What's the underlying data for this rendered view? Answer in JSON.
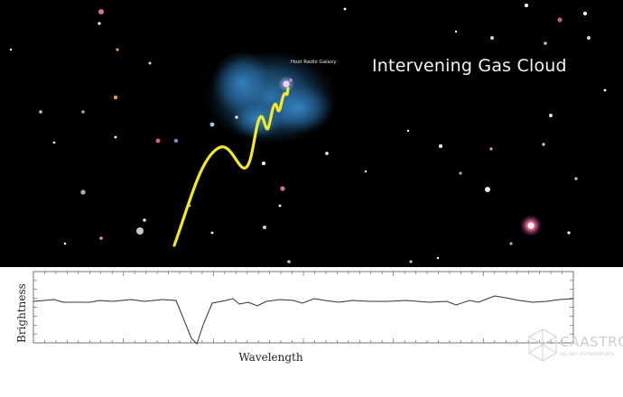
{
  "scene": {
    "title": "Intervening Gas Cloud",
    "galaxy_label": "Host Radio Galaxy"
  },
  "spectrum": {
    "ylabel": "Brightness",
    "xlabel": "Wavelength",
    "features": [
      "deep absorption line",
      "weak absorption lines"
    ]
  },
  "logo": {
    "name": "CAASTRO",
    "tagline": "ALL-SKY ASTROPHYSICS"
  },
  "colors": {
    "sky": "#000000",
    "radio_wave": "#f2e829",
    "gas_cloud": "#2f7fbf",
    "spectrum_line": "#333333"
  }
}
